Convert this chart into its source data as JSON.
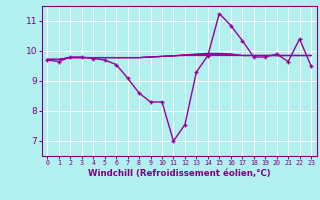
{
  "x": [
    0,
    1,
    2,
    3,
    4,
    5,
    6,
    7,
    8,
    9,
    10,
    11,
    12,
    13,
    14,
    15,
    16,
    17,
    18,
    19,
    20,
    21,
    22,
    23
  ],
  "y_main": [
    9.7,
    9.65,
    9.8,
    9.8,
    9.75,
    9.7,
    9.55,
    9.1,
    8.6,
    8.3,
    8.3,
    7.0,
    7.55,
    9.3,
    9.85,
    11.25,
    10.85,
    10.35,
    9.8,
    9.8,
    9.9,
    9.65,
    10.4,
    9.5
  ],
  "y_ref1": [
    9.72,
    9.72,
    9.78,
    9.78,
    9.78,
    9.78,
    9.78,
    9.78,
    9.78,
    9.8,
    9.82,
    9.84,
    9.85,
    9.85,
    9.85,
    9.85,
    9.85,
    9.85,
    9.85,
    9.85,
    9.85,
    9.85,
    9.85,
    9.85
  ],
  "y_ref2": [
    9.72,
    9.72,
    9.78,
    9.78,
    9.78,
    9.78,
    9.78,
    9.78,
    9.78,
    9.8,
    9.82,
    9.84,
    9.87,
    9.88,
    9.89,
    9.89,
    9.89,
    9.85,
    9.85,
    9.85,
    9.85,
    9.85,
    9.85,
    9.85
  ],
  "y_ref3": [
    9.72,
    9.72,
    9.78,
    9.78,
    9.78,
    9.78,
    9.78,
    9.78,
    9.78,
    9.8,
    9.82,
    9.84,
    9.87,
    9.9,
    9.92,
    9.92,
    9.9,
    9.85,
    9.85,
    9.85,
    9.85,
    9.85,
    9.85,
    9.85
  ],
  "line_color": "#990099",
  "bg_color": "#b2f0f0",
  "grid_color": "#ffffff",
  "axis_color": "#800080",
  "tick_color": "#800080",
  "xlabel": "Windchill (Refroidissement éolien,°C)",
  "ylabel_ticks": [
    7,
    8,
    9,
    10,
    11
  ],
  "xlim": [
    -0.5,
    23.5
  ],
  "ylim": [
    6.5,
    11.5
  ],
  "xticks": [
    0,
    1,
    2,
    3,
    4,
    5,
    6,
    7,
    8,
    9,
    10,
    11,
    12,
    13,
    14,
    15,
    16,
    17,
    18,
    19,
    20,
    21,
    22,
    23
  ]
}
